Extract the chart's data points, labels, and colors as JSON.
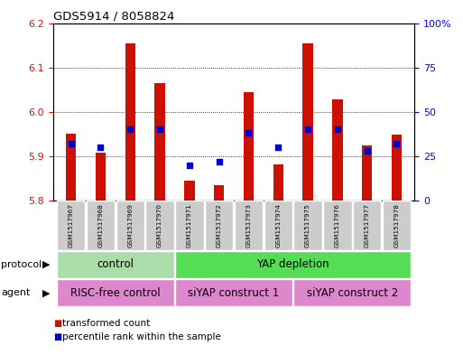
{
  "title": "GDS5914 / 8058824",
  "samples": [
    "GSM1517967",
    "GSM1517968",
    "GSM1517969",
    "GSM1517970",
    "GSM1517971",
    "GSM1517972",
    "GSM1517973",
    "GSM1517974",
    "GSM1517975",
    "GSM1517976",
    "GSM1517977",
    "GSM1517978"
  ],
  "transformed_counts": [
    5.95,
    5.907,
    6.155,
    6.065,
    5.845,
    5.835,
    6.045,
    5.881,
    6.155,
    6.028,
    5.925,
    5.948
  ],
  "percentile_ranks": [
    32,
    30,
    40,
    40,
    20,
    22,
    38,
    30,
    40,
    40,
    28,
    32
  ],
  "ylim_left": [
    5.8,
    6.2
  ],
  "ylim_right": [
    0,
    100
  ],
  "yticks_left": [
    5.8,
    5.9,
    6.0,
    6.1,
    6.2
  ],
  "yticks_right": [
    0,
    25,
    50,
    75,
    100
  ],
  "ytick_labels_right": [
    "0",
    "25",
    "50",
    "75",
    "100%"
  ],
  "bar_color": "#cc1100",
  "dot_color": "#0000cc",
  "bar_bottom": 5.8,
  "bar_width": 0.35,
  "protocol_groups": [
    {
      "label": "control",
      "start": 0,
      "end": 3,
      "color": "#aaddaa"
    },
    {
      "label": "YAP depletion",
      "start": 4,
      "end": 11,
      "color": "#55dd55"
    }
  ],
  "agent_groups": [
    {
      "label": "RISC-free control",
      "start": 0,
      "end": 3,
      "color": "#dd88cc"
    },
    {
      "label": "siYAP construct 1",
      "start": 4,
      "end": 7,
      "color": "#dd88cc"
    },
    {
      "label": "siYAP construct 2",
      "start": 8,
      "end": 11,
      "color": "#dd88cc"
    }
  ],
  "protocol_label": "protocol",
  "agent_label": "agent",
  "legend_bar": "transformed count",
  "legend_dot": "percentile rank within the sample",
  "background_color": "#ffffff",
  "plot_bg_color": "#ffffff",
  "label_box_color": "#cccccc"
}
